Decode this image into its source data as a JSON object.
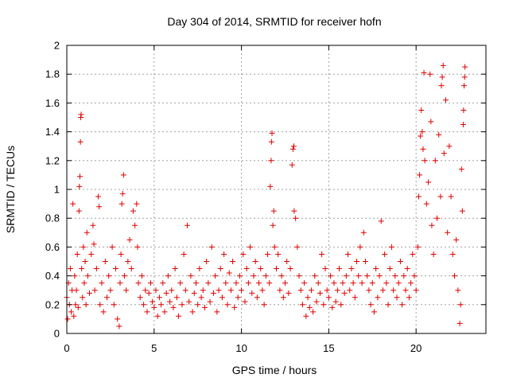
{
  "chart_data": {
    "type": "scatter",
    "title": "Day 304 of 2014, SRMTID for receiver hofn",
    "xlabel": "GPS time / hours",
    "ylabel": "SRMTID / TECUs",
    "xlim": [
      0,
      24
    ],
    "ylim": [
      0,
      2
    ],
    "x_ticks": [
      0,
      5,
      10,
      15,
      20
    ],
    "x_tick_labels": [
      "0",
      "5",
      "10",
      "15",
      "20"
    ],
    "y_ticks": [
      0,
      0.2,
      0.4,
      0.6,
      0.8,
      1,
      1.2,
      1.4,
      1.6,
      1.8,
      2
    ],
    "y_tick_labels": [
      "0",
      "0.2",
      "0.4",
      "0.6",
      "0.8",
      "1",
      "1.2",
      "1.4",
      "1.6",
      "1.8",
      "2"
    ],
    "grid": true,
    "marker": "+",
    "color": "#e00000",
    "series": [
      {
        "name": "SRMTID",
        "points": [
          [
            0.0,
            0.25
          ],
          [
            0.05,
            0.1
          ],
          [
            0.1,
            0.35
          ],
          [
            0.15,
            0.2
          ],
          [
            0.2,
            0.45
          ],
          [
            0.25,
            0.15
          ],
          [
            0.3,
            0.3
          ],
          [
            0.35,
            0.9
          ],
          [
            0.4,
            0.12
          ],
          [
            0.45,
            0.4
          ],
          [
            0.5,
            0.2
          ],
          [
            0.55,
            0.3
          ],
          [
            0.6,
            0.55
          ],
          [
            0.65,
            0.18
          ],
          [
            0.7,
            0.85
          ],
          [
            0.72,
            1.02
          ],
          [
            0.75,
            1.09
          ],
          [
            0.78,
            1.33
          ],
          [
            0.8,
            1.5
          ],
          [
            0.82,
            1.52
          ],
          [
            0.85,
            0.45
          ],
          [
            0.9,
            0.25
          ],
          [
            0.95,
            0.6
          ],
          [
            1.0,
            0.35
          ],
          [
            1.05,
            0.5
          ],
          [
            1.1,
            0.2
          ],
          [
            1.15,
            0.7
          ],
          [
            1.2,
            0.4
          ],
          [
            1.3,
            0.28
          ],
          [
            1.4,
            0.55
          ],
          [
            1.5,
            0.75
          ],
          [
            1.55,
            0.62
          ],
          [
            1.6,
            0.3
          ],
          [
            1.7,
            0.45
          ],
          [
            1.8,
            0.95
          ],
          [
            1.85,
            0.88
          ],
          [
            1.9,
            0.2
          ],
          [
            2.0,
            0.35
          ],
          [
            2.1,
            0.15
          ],
          [
            2.2,
            0.5
          ],
          [
            2.3,
            0.25
          ],
          [
            2.4,
            0.4
          ],
          [
            2.5,
            0.3
          ],
          [
            2.6,
            0.6
          ],
          [
            2.7,
            0.2
          ],
          [
            2.8,
            0.45
          ],
          [
            2.9,
            0.1
          ],
          [
            3.0,
            0.05
          ],
          [
            3.05,
            0.35
          ],
          [
            3.1,
            0.55
          ],
          [
            3.15,
            0.9
          ],
          [
            3.2,
            0.97
          ],
          [
            3.25,
            1.1
          ],
          [
            3.3,
            0.4
          ],
          [
            3.4,
            0.3
          ],
          [
            3.5,
            0.5
          ],
          [
            3.6,
            0.65
          ],
          [
            3.7,
            0.45
          ],
          [
            3.8,
            0.85
          ],
          [
            3.9,
            0.75
          ],
          [
            4.0,
            0.9
          ],
          [
            4.05,
            0.6
          ],
          [
            4.1,
            0.35
          ],
          [
            4.2,
            0.25
          ],
          [
            4.3,
            0.4
          ],
          [
            4.4,
            0.2
          ],
          [
            4.5,
            0.3
          ],
          [
            4.6,
            0.15
          ],
          [
            4.7,
            0.28
          ],
          [
            4.8,
            0.35
          ],
          [
            4.9,
            0.22
          ],
          [
            5.0,
            0.18
          ],
          [
            5.1,
            0.3
          ],
          [
            5.2,
            0.12
          ],
          [
            5.3,
            0.25
          ],
          [
            5.4,
            0.2
          ],
          [
            5.5,
            0.35
          ],
          [
            5.6,
            0.15
          ],
          [
            5.7,
            0.28
          ],
          [
            5.8,
            0.4
          ],
          [
            5.9,
            0.22
          ],
          [
            6.0,
            0.3
          ],
          [
            6.1,
            0.18
          ],
          [
            6.2,
            0.45
          ],
          [
            6.3,
            0.25
          ],
          [
            6.4,
            0.12
          ],
          [
            6.5,
            0.35
          ],
          [
            6.6,
            0.2
          ],
          [
            6.7,
            0.55
          ],
          [
            6.8,
            0.3
          ],
          [
            6.9,
            0.75
          ],
          [
            7.0,
            0.22
          ],
          [
            7.1,
            0.4
          ],
          [
            7.2,
            0.15
          ],
          [
            7.3,
            0.28
          ],
          [
            7.4,
            0.35
          ],
          [
            7.5,
            0.2
          ],
          [
            7.6,
            0.45
          ],
          [
            7.7,
            0.25
          ],
          [
            7.8,
            0.3
          ],
          [
            7.9,
            0.18
          ],
          [
            8.0,
            0.5
          ],
          [
            8.1,
            0.35
          ],
          [
            8.2,
            0.22
          ],
          [
            8.3,
            0.6
          ],
          [
            8.4,
            0.28
          ],
          [
            8.5,
            0.4
          ],
          [
            8.6,
            0.15
          ],
          [
            8.7,
            0.3
          ],
          [
            8.8,
            0.45
          ],
          [
            8.9,
            0.25
          ],
          [
            9.0,
            0.55
          ],
          [
            9.1,
            0.35
          ],
          [
            9.2,
            0.2
          ],
          [
            9.3,
            0.42
          ],
          [
            9.4,
            0.3
          ],
          [
            9.5,
            0.5
          ],
          [
            9.6,
            0.18
          ],
          [
            9.7,
            0.35
          ],
          [
            9.8,
            0.25
          ],
          [
            9.9,
            0.4
          ],
          [
            10.0,
            0.3
          ],
          [
            10.1,
            0.55
          ],
          [
            10.2,
            0.22
          ],
          [
            10.3,
            0.45
          ],
          [
            10.4,
            0.35
          ],
          [
            10.5,
            0.6
          ],
          [
            10.6,
            0.28
          ],
          [
            10.7,
            0.4
          ],
          [
            10.8,
            0.5
          ],
          [
            10.9,
            0.25
          ],
          [
            11.0,
            0.35
          ],
          [
            11.1,
            0.45
          ],
          [
            11.2,
            0.3
          ],
          [
            11.3,
            0.2
          ],
          [
            11.4,
            0.4
          ],
          [
            11.5,
            0.55
          ],
          [
            11.6,
            0.35
          ],
          [
            11.65,
            1.02
          ],
          [
            11.7,
            1.2
          ],
          [
            11.72,
            1.33
          ],
          [
            11.75,
            1.39
          ],
          [
            11.8,
            0.75
          ],
          [
            11.85,
            0.85
          ],
          [
            11.9,
            0.6
          ],
          [
            12.0,
            0.45
          ],
          [
            12.1,
            0.55
          ],
          [
            12.2,
            0.3
          ],
          [
            12.3,
            0.4
          ],
          [
            12.4,
            0.25
          ],
          [
            12.5,
            0.35
          ],
          [
            12.6,
            0.5
          ],
          [
            12.7,
            0.28
          ],
          [
            12.8,
            0.45
          ],
          [
            12.9,
            1.17
          ],
          [
            12.95,
            1.28
          ],
          [
            13.0,
            1.3
          ],
          [
            13.02,
            0.85
          ],
          [
            13.1,
            0.8
          ],
          [
            13.2,
            0.6
          ],
          [
            13.3,
            0.4
          ],
          [
            13.4,
            0.3
          ],
          [
            13.5,
            0.2
          ],
          [
            13.6,
            0.35
          ],
          [
            13.7,
            0.12
          ],
          [
            13.8,
            0.25
          ],
          [
            13.9,
            0.18
          ],
          [
            14.0,
            0.3
          ],
          [
            14.1,
            0.15
          ],
          [
            14.2,
            0.4
          ],
          [
            14.3,
            0.22
          ],
          [
            14.4,
            0.35
          ],
          [
            14.5,
            0.28
          ],
          [
            14.6,
            0.55
          ],
          [
            14.7,
            0.2
          ],
          [
            14.8,
            0.45
          ],
          [
            14.9,
            0.3
          ],
          [
            15.0,
            0.25
          ],
          [
            15.1,
            0.4
          ],
          [
            15.2,
            0.18
          ],
          [
            15.3,
            0.35
          ],
          [
            15.4,
            0.22
          ],
          [
            15.5,
            0.3
          ],
          [
            15.6,
            0.45
          ],
          [
            15.7,
            0.2
          ],
          [
            15.8,
            0.35
          ],
          [
            15.9,
            0.28
          ],
          [
            16.0,
            0.4
          ],
          [
            16.1,
            0.55
          ],
          [
            16.2,
            0.3
          ],
          [
            16.3,
            0.45
          ],
          [
            16.4,
            0.35
          ],
          [
            16.5,
            0.25
          ],
          [
            16.6,
            0.5
          ],
          [
            16.7,
            0.4
          ],
          [
            16.8,
            0.6
          ],
          [
            16.9,
            0.35
          ],
          [
            17.0,
            0.7
          ],
          [
            17.1,
            0.5
          ],
          [
            17.2,
            0.4
          ],
          [
            17.3,
            0.3
          ],
          [
            17.4,
            0.2
          ],
          [
            17.5,
            0.35
          ],
          [
            17.6,
            0.15
          ],
          [
            17.7,
            0.45
          ],
          [
            17.8,
            0.25
          ],
          [
            17.9,
            0.4
          ],
          [
            18.0,
            0.78
          ],
          [
            18.1,
            0.3
          ],
          [
            18.2,
            0.55
          ],
          [
            18.3,
            0.35
          ],
          [
            18.4,
            0.2
          ],
          [
            18.5,
            0.45
          ],
          [
            18.6,
            0.6
          ],
          [
            18.7,
            0.3
          ],
          [
            18.8,
            0.4
          ],
          [
            18.9,
            0.25
          ],
          [
            19.0,
            0.35
          ],
          [
            19.1,
            0.5
          ],
          [
            19.2,
            0.2
          ],
          [
            19.3,
            0.4
          ],
          [
            19.4,
            0.3
          ],
          [
            19.5,
            0.45
          ],
          [
            19.6,
            0.25
          ],
          [
            19.7,
            0.35
          ],
          [
            19.8,
            0.55
          ],
          [
            19.9,
            0.4
          ],
          [
            20.0,
            0.3
          ],
          [
            20.1,
            0.6
          ],
          [
            20.15,
            0.95
          ],
          [
            20.2,
            1.1
          ],
          [
            20.25,
            1.37
          ],
          [
            20.3,
            1.55
          ],
          [
            20.35,
            1.4
          ],
          [
            20.4,
            1.28
          ],
          [
            20.45,
            1.81
          ],
          [
            20.5,
            1.2
          ],
          [
            20.6,
            0.9
          ],
          [
            20.7,
            1.05
          ],
          [
            20.8,
            1.8
          ],
          [
            20.85,
            1.47
          ],
          [
            20.9,
            0.75
          ],
          [
            21.0,
            0.55
          ],
          [
            21.1,
            1.2
          ],
          [
            21.2,
            0.8
          ],
          [
            21.3,
            1.38
          ],
          [
            21.4,
            0.95
          ],
          [
            21.45,
            1.72
          ],
          [
            21.5,
            1.78
          ],
          [
            21.55,
            1.86
          ],
          [
            21.6,
            1.25
          ],
          [
            21.7,
            1.62
          ],
          [
            21.8,
            0.7
          ],
          [
            21.9,
            1.3
          ],
          [
            22.0,
            0.95
          ],
          [
            22.1,
            0.55
          ],
          [
            22.2,
            0.4
          ],
          [
            22.3,
            0.65
          ],
          [
            22.4,
            0.3
          ],
          [
            22.5,
            0.07
          ],
          [
            22.55,
            0.2
          ],
          [
            22.6,
            1.14
          ],
          [
            22.65,
            0.85
          ],
          [
            22.7,
            1.45
          ],
          [
            22.72,
            1.55
          ],
          [
            22.75,
            1.72
          ],
          [
            22.78,
            1.78
          ],
          [
            22.8,
            1.85
          ]
        ]
      }
    ]
  }
}
